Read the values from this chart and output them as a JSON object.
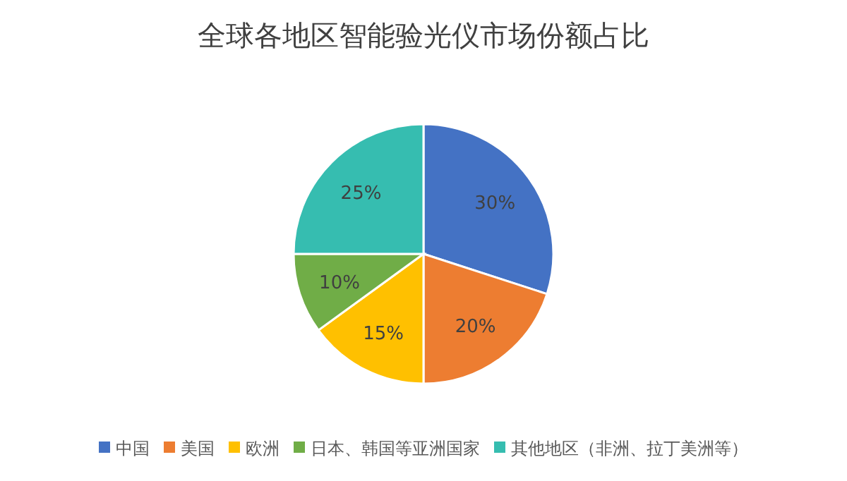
{
  "chart_data": {
    "type": "pie",
    "title": "全球各地区智能验光仪市场份额占比",
    "categories": [
      "中国",
      "美国",
      "欧洲",
      "日本、韩国等亚洲国家",
      "其他地区（非洲、拉丁美洲等）"
    ],
    "values": [
      30,
      20,
      15,
      10,
      25
    ],
    "colors": [
      "#4472c4",
      "#ed7d31",
      "#ffc000",
      "#70ad47",
      "#36bdb0"
    ],
    "value_labels": [
      "30%",
      "20%",
      "15%",
      "10%",
      "25%"
    ],
    "legend": "bottom"
  }
}
